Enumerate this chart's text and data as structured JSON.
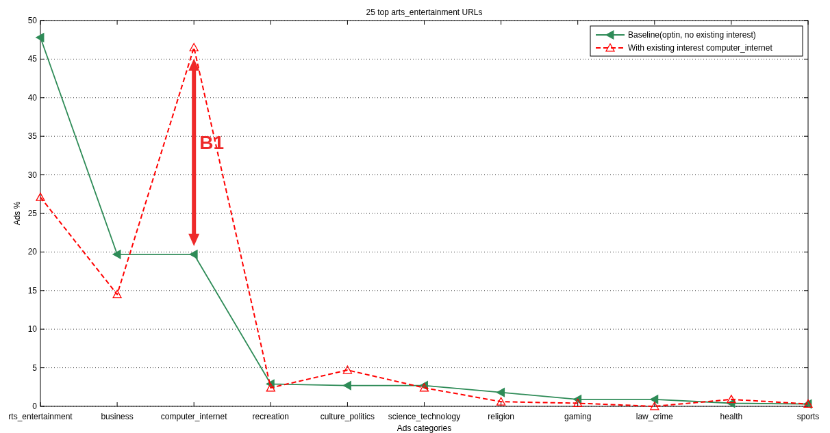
{
  "chart_data": {
    "type": "line",
    "title": "25 top arts_entertainment URLs",
    "xlabel": "Ads categories",
    "ylabel": "Ads %",
    "categories": [
      "rts_entertainment",
      "business",
      "computer_internet",
      "recreation",
      "culture_politics",
      "science_technology",
      "religion",
      "gaming",
      "law_crime",
      "health",
      "sports"
    ],
    "series": [
      {
        "name": "Baseline(optin, no existing interest)",
        "color": "#2e8b57",
        "line_style": "solid",
        "values": [
          47.8,
          19.7,
          19.7,
          2.9,
          2.7,
          2.7,
          1.8,
          0.9,
          0.9,
          0.4,
          0.3
        ]
      },
      {
        "name": "With existing interest computer_internet",
        "color": "#ff0000",
        "line_style": "dashed",
        "values": [
          27.1,
          14.5,
          46.5,
          2.4,
          4.7,
          2.4,
          0.6,
          0.4,
          0,
          0.9,
          0.3
        ]
      }
    ],
    "ylim": [
      0,
      50
    ],
    "yticks": [
      0,
      5,
      10,
      15,
      20,
      25,
      30,
      35,
      40,
      45,
      50
    ],
    "grid": "y",
    "legend": "top right",
    "marker": "triangle",
    "annotations": [
      "B1"
    ]
  }
}
